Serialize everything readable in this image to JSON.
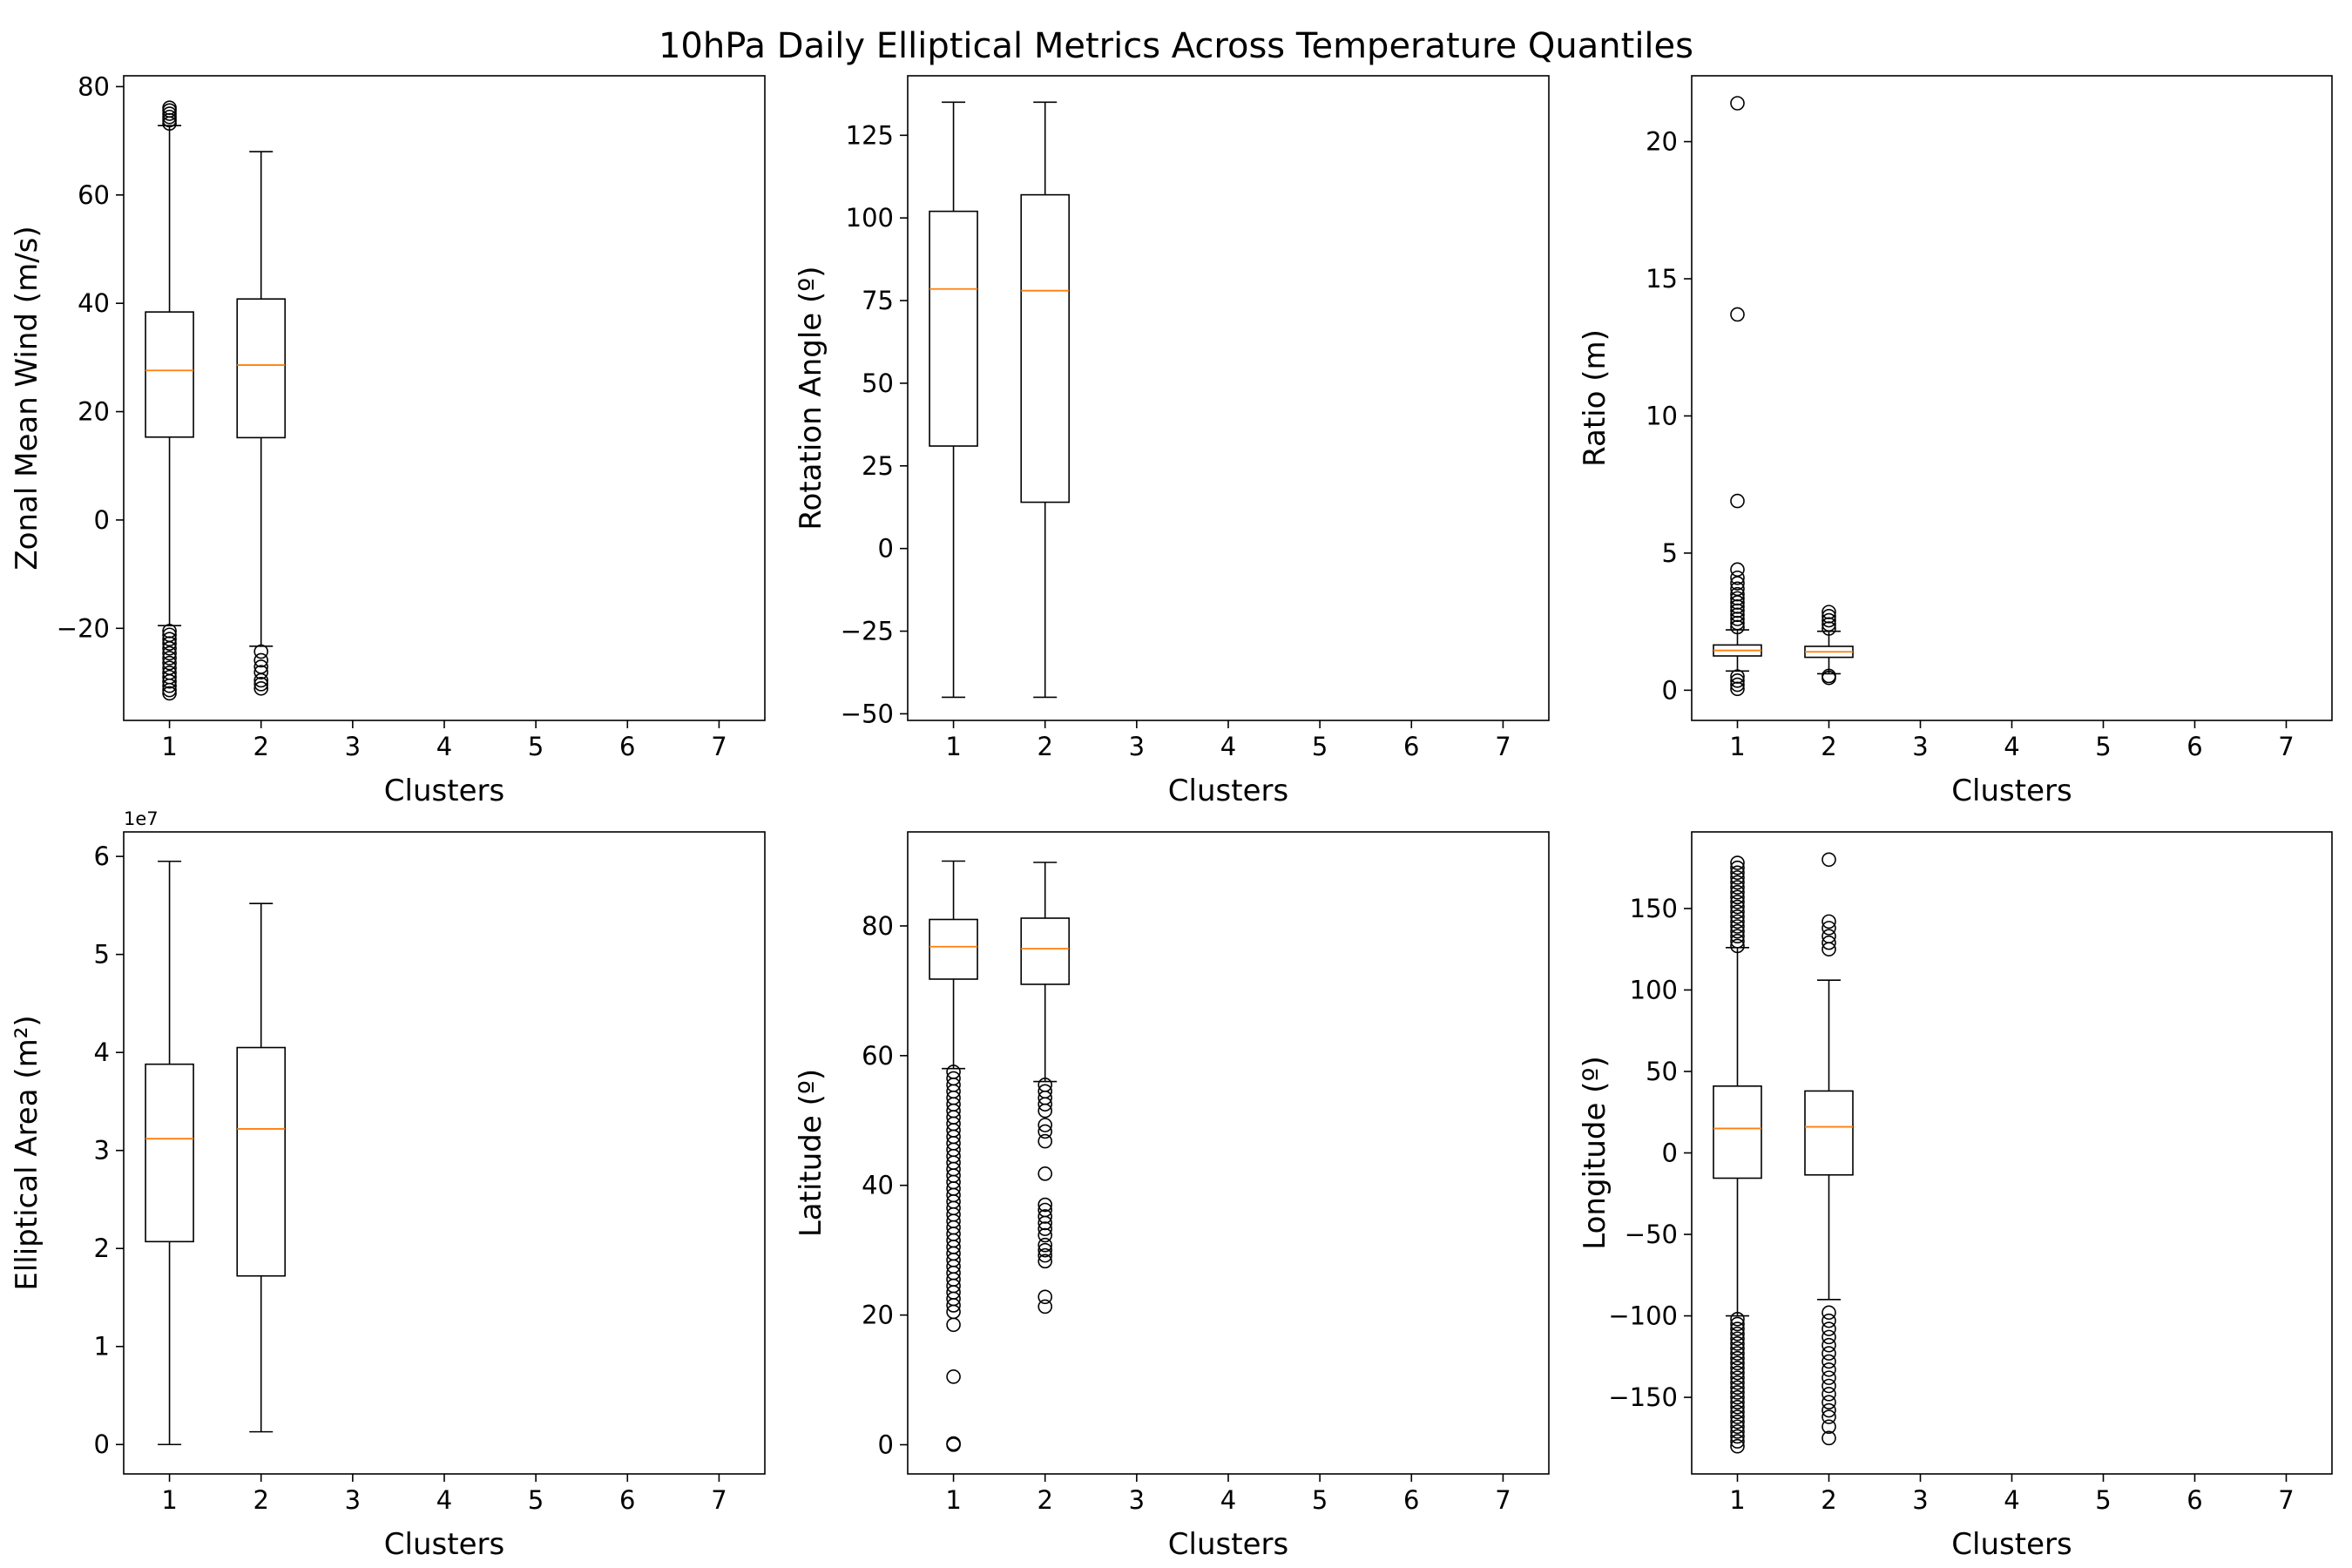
{
  "figure": {
    "title": "10hPa Daily Elliptical Metrics Across Temperature Quantiles"
  },
  "colors": {
    "box": "#000000",
    "median": "#ff7f0e",
    "background": "#ffffff"
  },
  "chart_data": [
    {
      "type": "boxplot",
      "xlabel": "Clusters",
      "ylabel": "Zonal Mean Wind (m/s)",
      "categories": [
        "1",
        "2",
        "3",
        "4",
        "5",
        "6",
        "7"
      ],
      "ylim": [
        -37,
        82
      ],
      "yticks": [
        -20,
        0,
        20,
        40,
        60,
        80
      ],
      "ytick_labels": [
        "−20",
        "0",
        "20",
        "40",
        "60",
        "80"
      ],
      "offset_text": "",
      "grid": false,
      "boxes": [
        {
          "category": "1",
          "whislo": -19.5,
          "q1": 15.3,
          "med": 27.6,
          "q3": 38.4,
          "whishi": 72.8,
          "fliers": [
            -32,
            -31.4,
            -30.6,
            -29.8,
            -29,
            -28.2,
            -27.3,
            -26.4,
            -25.5,
            -24.6,
            -23.7,
            -22.8,
            -22,
            -21.2,
            -20.5,
            73.2,
            73.8,
            74.4,
            75,
            75.6,
            76.1
          ]
        },
        {
          "category": "2",
          "whislo": -23.3,
          "q1": 15.2,
          "med": 28.6,
          "q3": 40.8,
          "whishi": 68,
          "fliers": [
            -31.1,
            -30.3,
            -29.6,
            -28.1,
            -27.1,
            -25.9,
            -24.3
          ]
        }
      ]
    },
    {
      "type": "boxplot",
      "xlabel": "Clusters",
      "ylabel": "Rotation Angle (º)",
      "categories": [
        "1",
        "2",
        "3",
        "4",
        "5",
        "6",
        "7"
      ],
      "ylim": [
        -52,
        143
      ],
      "yticks": [
        -50,
        -25,
        0,
        25,
        50,
        75,
        100,
        125
      ],
      "ytick_labels": [
        "−50",
        "−25",
        "0",
        "25",
        "50",
        "75",
        "100",
        "125"
      ],
      "offset_text": "",
      "grid": false,
      "boxes": [
        {
          "category": "1",
          "whislo": -45,
          "q1": 31,
          "med": 78.5,
          "q3": 102,
          "whishi": 135,
          "fliers": []
        },
        {
          "category": "2",
          "whislo": -45,
          "q1": 14,
          "med": 78,
          "q3": 107,
          "whishi": 135,
          "fliers": []
        }
      ]
    },
    {
      "type": "boxplot",
      "xlabel": "Clusters",
      "ylabel": "Ratio (m)",
      "categories": [
        "1",
        "2",
        "3",
        "4",
        "5",
        "6",
        "7"
      ],
      "ylim": [
        -1.1,
        22.4
      ],
      "yticks": [
        0,
        5,
        10,
        15,
        20
      ],
      "ytick_labels": [
        "0",
        "5",
        "10",
        "15",
        "20"
      ],
      "offset_text": "",
      "grid": false,
      "boxes": [
        {
          "category": "1",
          "whislo": 0.7,
          "q1": 1.25,
          "med": 1.45,
          "q3": 1.65,
          "whishi": 2.2,
          "fliers": [
            0.05,
            0.2,
            0.35,
            0.5,
            2.3,
            2.45,
            2.6,
            2.75,
            2.9,
            3.05,
            3.2,
            3.35,
            3.5,
            3.7,
            3.9,
            4.1,
            4.4,
            6.9,
            13.7,
            21.4
          ]
        },
        {
          "category": "2",
          "whislo": 0.6,
          "q1": 1.2,
          "med": 1.4,
          "q3": 1.6,
          "whishi": 2.15,
          "fliers": [
            0.45,
            0.52,
            2.25,
            2.4,
            2.55,
            2.7,
            2.85
          ]
        }
      ]
    },
    {
      "type": "boxplot",
      "xlabel": "Clusters",
      "ylabel": "Elliptical Area (m²)",
      "categories": [
        "1",
        "2",
        "3",
        "4",
        "5",
        "6",
        "7"
      ],
      "ylim": [
        -0.3,
        6.25
      ],
      "yticks": [
        0,
        1,
        2,
        3,
        4,
        5,
        6
      ],
      "ytick_labels": [
        "0",
        "1",
        "2",
        "3",
        "4",
        "5",
        "6"
      ],
      "offset_text": "1e7",
      "grid": false,
      "boxes": [
        {
          "category": "1",
          "whislo": 0,
          "q1": 2.07,
          "med": 3.12,
          "q3": 3.88,
          "whishi": 5.95,
          "fliers": []
        },
        {
          "category": "2",
          "whislo": 0.13,
          "q1": 1.72,
          "med": 3.22,
          "q3": 4.05,
          "whishi": 5.52,
          "fliers": []
        }
      ]
    },
    {
      "type": "boxplot",
      "xlabel": "Clusters",
      "ylabel": "Latitude (º)",
      "categories": [
        "1",
        "2",
        "3",
        "4",
        "5",
        "6",
        "7"
      ],
      "ylim": [
        -4.5,
        94.5
      ],
      "yticks": [
        0,
        20,
        40,
        60,
        80
      ],
      "ytick_labels": [
        "0",
        "20",
        "40",
        "60",
        "80"
      ],
      "offset_text": "",
      "grid": false,
      "boxes": [
        {
          "category": "1",
          "whislo": 58,
          "q1": 71.8,
          "med": 76.8,
          "q3": 81,
          "whishi": 90,
          "fliers": [
            0,
            0.2,
            10.5,
            18.5,
            20.5,
            21.5,
            22.5,
            23.5,
            24.5,
            25.5,
            26.5,
            27.5,
            28.5,
            29.5,
            30.5,
            31.5,
            32.5,
            33.5,
            34.5,
            35.5,
            36.5,
            37.5,
            38.5,
            39.5,
            40.5,
            41.5,
            42.5,
            43.5,
            44.5,
            45.5,
            46.5,
            47.5,
            48.5,
            49.5,
            50.5,
            51.5,
            52.5,
            53.5,
            54.5,
            55.5,
            56.5,
            57.5
          ]
        },
        {
          "category": "2",
          "whislo": 56,
          "q1": 71,
          "med": 76.5,
          "q3": 81.2,
          "whishi": 89.8,
          "fliers": [
            21.3,
            22.8,
            28.3,
            29.2,
            30,
            30.8,
            32.3,
            33.3,
            34.2,
            35.2,
            36.2,
            37,
            41.8,
            46.8,
            48.3,
            49.3,
            51.5,
            52.5,
            53.5,
            54.5,
            55.5
          ]
        }
      ]
    },
    {
      "type": "boxplot",
      "xlabel": "Clusters",
      "ylabel": "Longitude (º)",
      "categories": [
        "1",
        "2",
        "3",
        "4",
        "5",
        "6",
        "7"
      ],
      "ylim": [
        -197,
        197
      ],
      "yticks": [
        -150,
        -100,
        -50,
        0,
        50,
        100,
        150
      ],
      "ytick_labels": [
        "−150",
        "−100",
        "−50",
        "0",
        "50",
        "100",
        "150"
      ],
      "offset_text": "",
      "grid": false,
      "boxes": [
        {
          "category": "1",
          "whislo": -100,
          "q1": -15.5,
          "med": 15,
          "q3": 41,
          "whishi": 126,
          "fliers": [
            -180,
            -177,
            -174,
            -171,
            -168,
            -165,
            -162,
            -159,
            -156,
            -153,
            -150,
            -147,
            -144,
            -141,
            -138,
            -135,
            -132,
            -129,
            -126,
            -123,
            -120,
            -117,
            -114,
            -111,
            -108,
            -105,
            -102,
            127,
            130,
            133,
            136,
            139,
            142,
            145,
            148,
            151,
            154,
            157,
            160,
            163,
            166,
            169,
            172,
            175,
            178
          ]
        },
        {
          "category": "2",
          "whislo": -90,
          "q1": -13.5,
          "med": 16,
          "q3": 38,
          "whishi": 106,
          "fliers": [
            -175,
            -168,
            -162,
            -158,
            -153,
            -148,
            -143,
            -138,
            -133,
            -128,
            -123,
            -118,
            -113,
            -108,
            -103,
            -98,
            125,
            129,
            133,
            138,
            142,
            180
          ]
        }
      ]
    }
  ]
}
